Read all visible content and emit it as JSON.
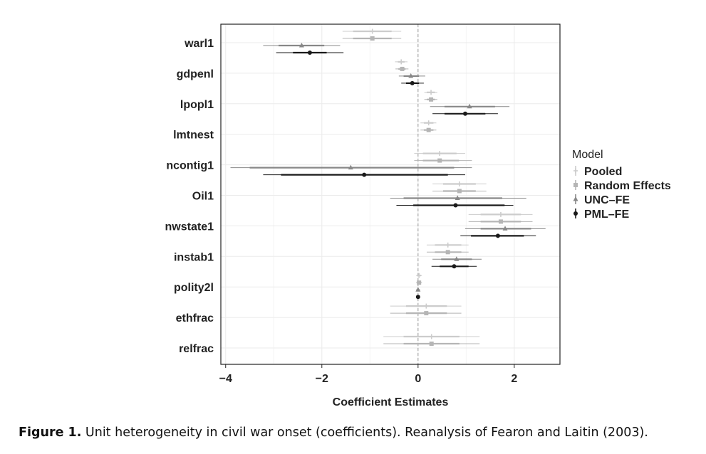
{
  "caption": {
    "label": "Figure 1.",
    "text": " Unit heterogeneity in civil war onset (coefficients). Reanalysis of Fearon and Laitin (2003)."
  },
  "chart_data": {
    "type": "scatter",
    "subtype": "coefficient-plot",
    "xlabel": "Coefficient Estimates",
    "xlim": [
      -4.1,
      2.95
    ],
    "x_ticks": [
      -4,
      -2,
      0,
      2
    ],
    "x_tick_labels": [
      "−4",
      "−2",
      "0",
      "2"
    ],
    "reference_line_x": 0,
    "grid": true,
    "legend": {
      "title": "Model",
      "placement": "right"
    },
    "categories": [
      "warl1",
      "gdpenl",
      "lpopl1",
      "lmtnest",
      "ncontig1",
      "Oil1",
      "nwstate1",
      "instab1",
      "polity2l",
      "ethfrac",
      "relfrac"
    ],
    "series": [
      {
        "name": "Pooled",
        "color": "#cccccc",
        "marker": "plus",
        "points": [
          {
            "est": -0.95,
            "outer": [
              -1.57,
              -0.35
            ],
            "inner": [
              -1.35,
              -0.55
            ]
          },
          {
            "est": -0.35,
            "outer": [
              -0.48,
              -0.22
            ],
            "inner": [
              -0.42,
              -0.28
            ]
          },
          {
            "est": 0.27,
            "outer": [
              0.13,
              0.4
            ],
            "inner": [
              0.18,
              0.35
            ]
          },
          {
            "est": 0.22,
            "outer": [
              0.05,
              0.38
            ],
            "inner": [
              0.12,
              0.32
            ]
          },
          {
            "est": 0.45,
            "outer": [
              -0.08,
              0.98
            ],
            "inner": [
              0.1,
              0.8
            ]
          },
          {
            "est": 0.86,
            "outer": [
              0.3,
              1.42
            ],
            "inner": [
              0.52,
              1.2
            ]
          },
          {
            "est": 1.72,
            "outer": [
              1.05,
              2.38
            ],
            "inner": [
              1.3,
              2.14
            ]
          },
          {
            "est": 0.62,
            "outer": [
              0.18,
              1.05
            ],
            "inner": [
              0.35,
              0.9
            ]
          },
          {
            "est": 0.02,
            "outer": [
              -0.04,
              0.08
            ],
            "inner": [
              -0.02,
              0.06
            ]
          },
          {
            "est": 0.17,
            "outer": [
              -0.58,
              0.9
            ],
            "inner": [
              -0.25,
              0.6
            ]
          },
          {
            "est": 0.28,
            "outer": [
              -0.72,
              1.28
            ],
            "inner": [
              -0.3,
              0.86
            ]
          }
        ]
      },
      {
        "name": "Random Effects",
        "color": "#b5b5b5",
        "marker": "square",
        "points": [
          {
            "est": -0.95,
            "outer": [
              -1.57,
              -0.35
            ],
            "inner": [
              -1.35,
              -0.55
            ]
          },
          {
            "est": -0.33,
            "outer": [
              -0.47,
              -0.2
            ],
            "inner": [
              -0.41,
              -0.26
            ]
          },
          {
            "est": 0.27,
            "outer": [
              0.13,
              0.4
            ],
            "inner": [
              0.18,
              0.35
            ]
          },
          {
            "est": 0.22,
            "outer": [
              0.05,
              0.38
            ],
            "inner": [
              0.12,
              0.32
            ]
          },
          {
            "est": 0.45,
            "outer": [
              -0.08,
              1.12
            ],
            "inner": [
              0.1,
              0.85
            ]
          },
          {
            "est": 0.86,
            "outer": [
              0.3,
              1.42
            ],
            "inner": [
              0.52,
              1.2
            ]
          },
          {
            "est": 1.72,
            "outer": [
              1.05,
              2.38
            ],
            "inner": [
              1.3,
              2.14
            ]
          },
          {
            "est": 0.62,
            "outer": [
              0.18,
              1.05
            ],
            "inner": [
              0.35,
              0.9
            ]
          },
          {
            "est": 0.02,
            "outer": [
              -0.04,
              0.08
            ],
            "inner": [
              -0.02,
              0.06
            ]
          },
          {
            "est": 0.17,
            "outer": [
              -0.58,
              0.9
            ],
            "inner": [
              -0.25,
              0.6
            ]
          },
          {
            "est": 0.28,
            "outer": [
              -0.72,
              1.28
            ],
            "inner": [
              -0.3,
              0.86
            ]
          }
        ]
      },
      {
        "name": "UNC–FE",
        "color": "#888888",
        "marker": "triangle",
        "points": [
          {
            "est": -2.42,
            "outer": [
              -3.22,
              -1.62
            ],
            "inner": [
              -2.9,
              -1.95
            ]
          },
          {
            "est": -0.15,
            "outer": [
              -0.4,
              0.15
            ],
            "inner": [
              -0.3,
              0.02
            ]
          },
          {
            "est": 1.07,
            "outer": [
              0.25,
              1.9
            ],
            "inner": [
              0.55,
              1.6
            ]
          },
          null,
          {
            "est": -1.4,
            "outer": [
              -3.9,
              1.12
            ],
            "inner": [
              -3.5,
              0.75
            ]
          },
          {
            "est": 0.82,
            "outer": [
              -0.58,
              2.25
            ],
            "inner": [
              -0.3,
              1.75
            ]
          },
          {
            "est": 1.81,
            "outer": [
              0.98,
              2.65
            ],
            "inner": [
              1.3,
              2.35
            ]
          },
          {
            "est": 0.8,
            "outer": [
              0.3,
              1.32
            ],
            "inner": [
              0.48,
              1.12
            ]
          },
          {
            "est": 0.0,
            "outer": [
              -0.04,
              0.04
            ],
            "inner": [
              -0.02,
              0.02
            ]
          },
          null,
          null
        ]
      },
      {
        "name": "PML–FE",
        "color": "#1a1a1a",
        "marker": "circle",
        "points": [
          {
            "est": -2.25,
            "outer": [
              -2.95,
              -1.55
            ],
            "inner": [
              -2.6,
              -1.9
            ]
          },
          {
            "est": -0.12,
            "outer": [
              -0.35,
              0.12
            ],
            "inner": [
              -0.25,
              0.02
            ]
          },
          {
            "est": 0.98,
            "outer": [
              0.3,
              1.66
            ],
            "inner": [
              0.55,
              1.4
            ]
          },
          null,
          {
            "est": -1.12,
            "outer": [
              -3.22,
              0.98
            ],
            "inner": [
              -2.85,
              0.62
            ]
          },
          {
            "est": 0.78,
            "outer": [
              -0.45,
              1.98
            ],
            "inner": [
              -0.1,
              1.8
            ]
          },
          {
            "est": 1.66,
            "outer": [
              0.88,
              2.45
            ],
            "inner": [
              1.1,
              2.2
            ]
          },
          {
            "est": 0.75,
            "outer": [
              0.28,
              1.22
            ],
            "inner": [
              0.45,
              1.05
            ]
          },
          {
            "est": 0.0,
            "outer": [
              -0.03,
              0.03
            ],
            "inner": [
              -0.01,
              0.01
            ]
          },
          null,
          null
        ]
      }
    ]
  }
}
